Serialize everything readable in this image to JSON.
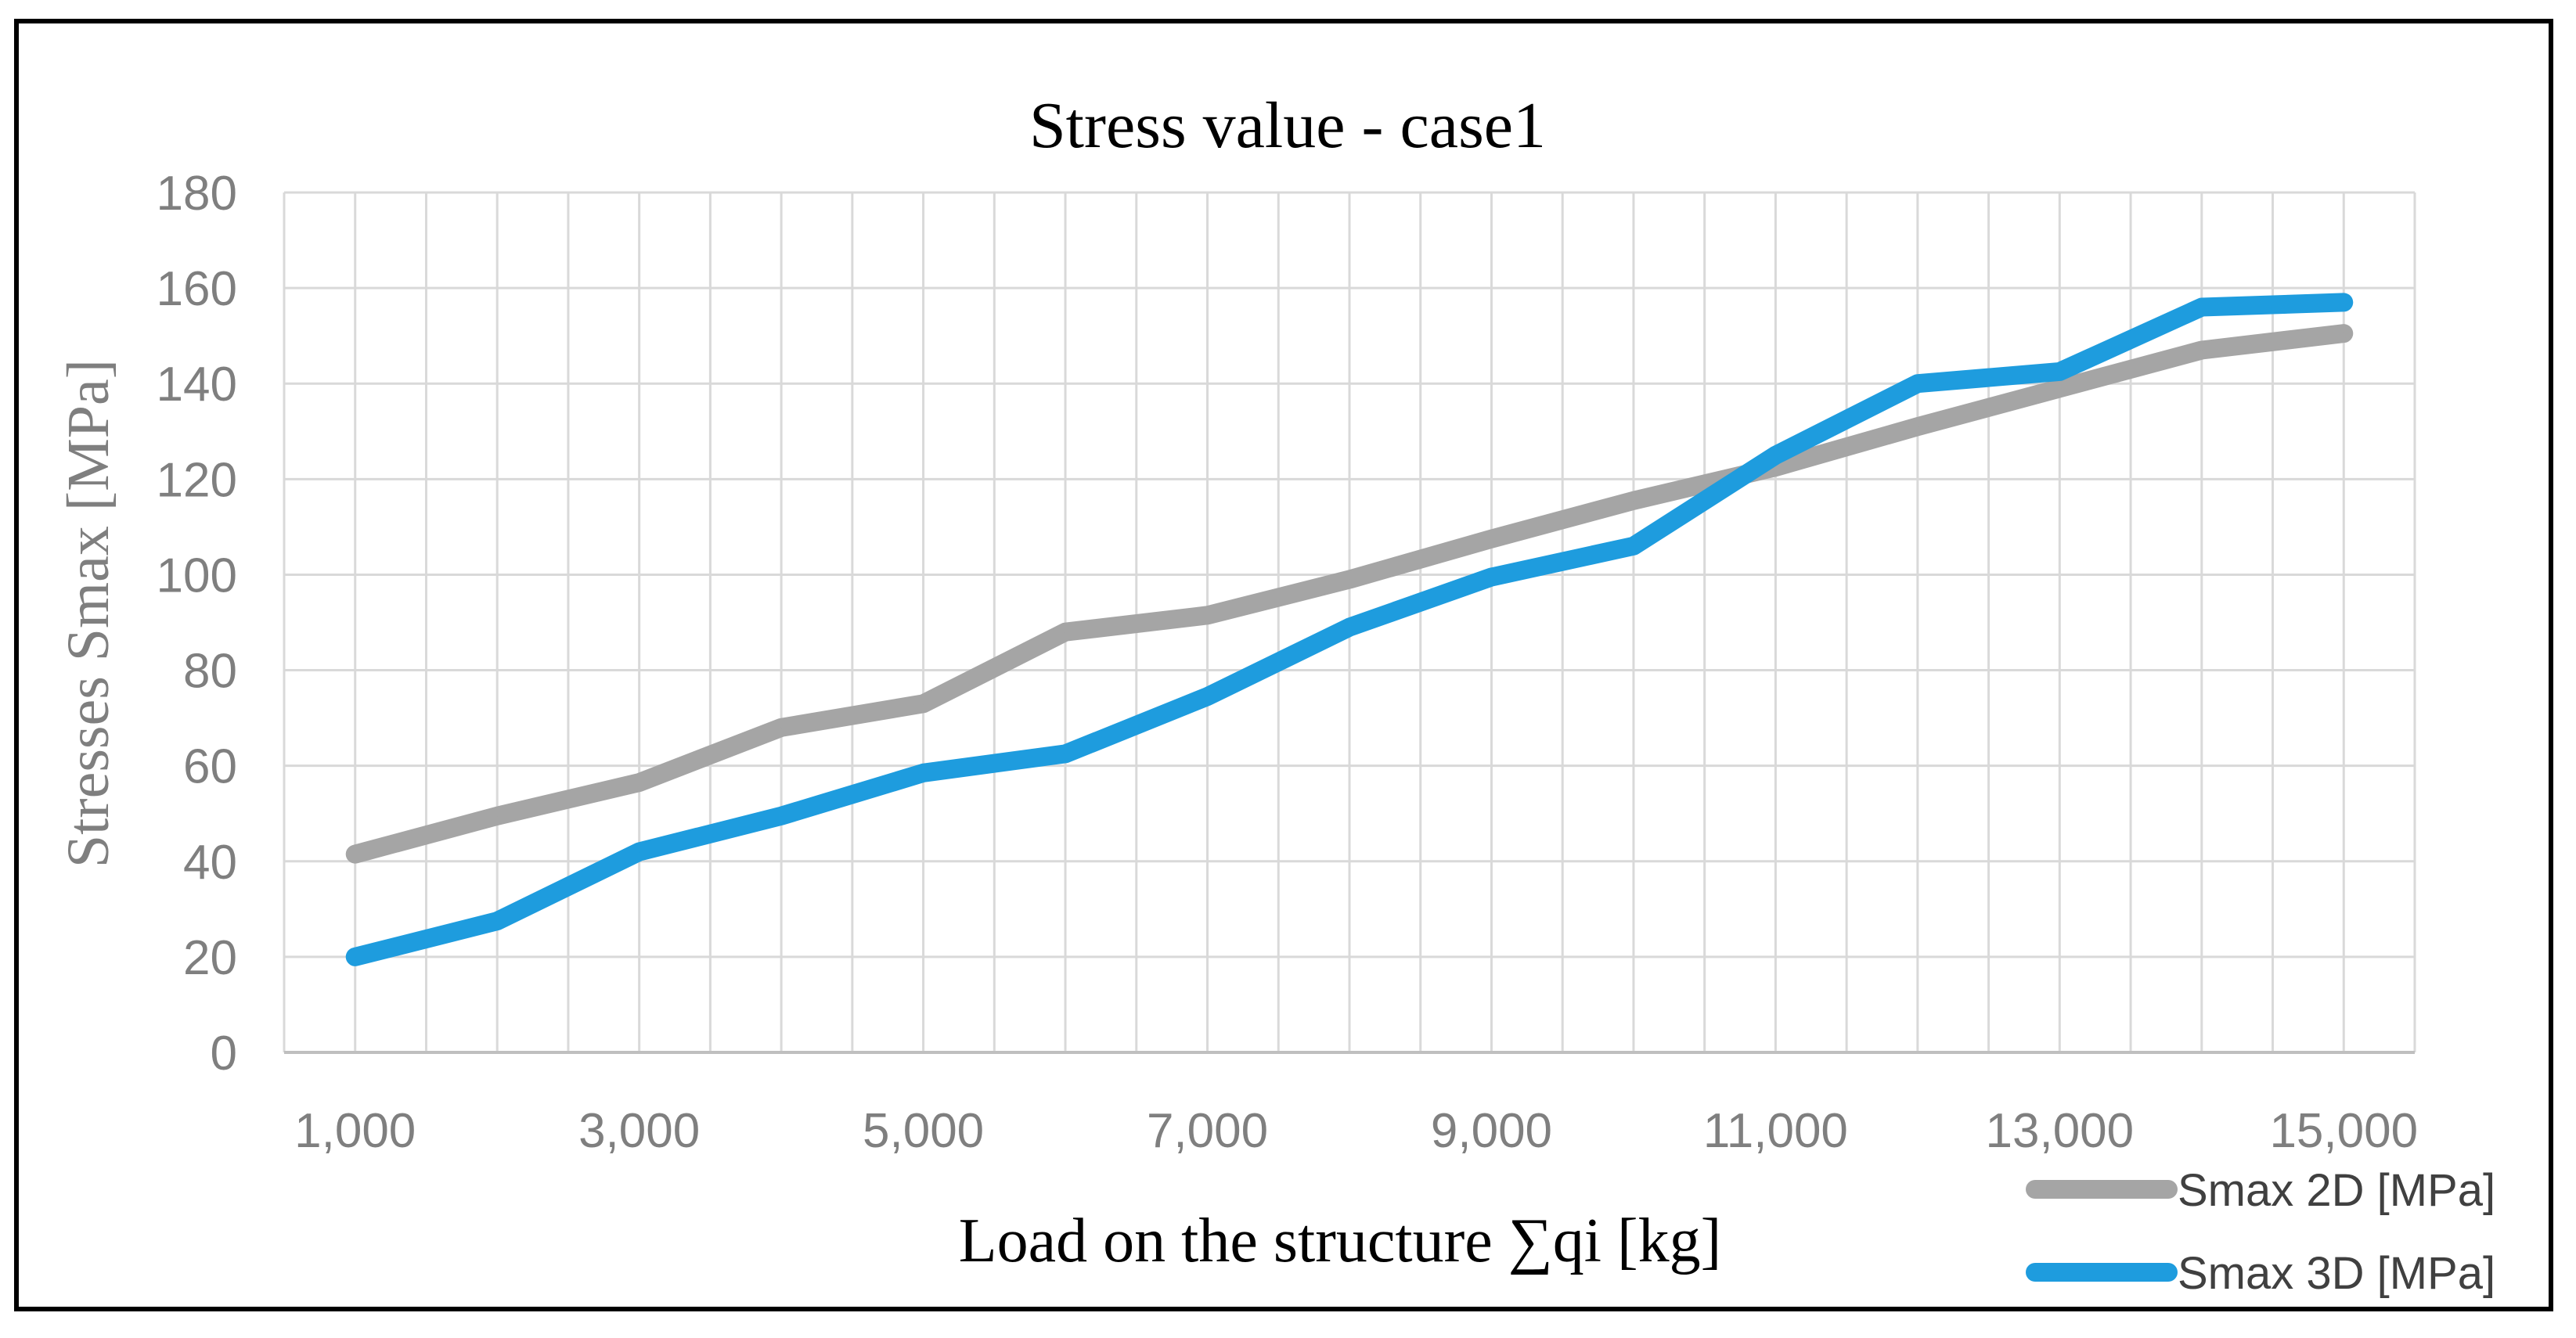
{
  "chart_data": {
    "type": "line",
    "title": "Stress value - case1",
    "xlabel": "Load on the structure ∑qi [kg]",
    "ylabel": "Stresses Smax [MPa]",
    "x": [
      1000,
      2000,
      3000,
      4000,
      5000,
      6000,
      7000,
      8000,
      9000,
      10000,
      11000,
      12000,
      13000,
      14000,
      15000
    ],
    "x_tick_labels": [
      "1,000",
      "3,000",
      "5,000",
      "7,000",
      "9,000",
      "11,000",
      "13,000",
      "15,000"
    ],
    "x_tick_values": [
      1000,
      3000,
      5000,
      7000,
      9000,
      11000,
      13000,
      15000
    ],
    "y_tick_labels": [
      "0",
      "20",
      "40",
      "60",
      "80",
      "100",
      "120",
      "140",
      "160",
      "180"
    ],
    "y_tick_values": [
      0,
      20,
      40,
      60,
      80,
      100,
      120,
      140,
      160,
      180
    ],
    "xlim": [
      500,
      15500
    ],
    "ylim": [
      0,
      180
    ],
    "grid": true,
    "legend_position": "bottom-right",
    "series": [
      {
        "name": "Smax 2D [MPa]",
        "color": "#A5A5A5",
        "values": [
          41.5,
          49.5,
          56.5,
          68,
          73,
          88,
          91.5,
          99,
          107.5,
          115.5,
          122.5,
          131,
          139,
          147,
          150.5
        ]
      },
      {
        "name": "Smax 3D [MPa]",
        "color": "#1E9CDE",
        "values": [
          20,
          27.5,
          42,
          49.5,
          58.5,
          62.5,
          74.5,
          89,
          99.5,
          106,
          125,
          140,
          142.5,
          156,
          157
        ]
      }
    ]
  }
}
